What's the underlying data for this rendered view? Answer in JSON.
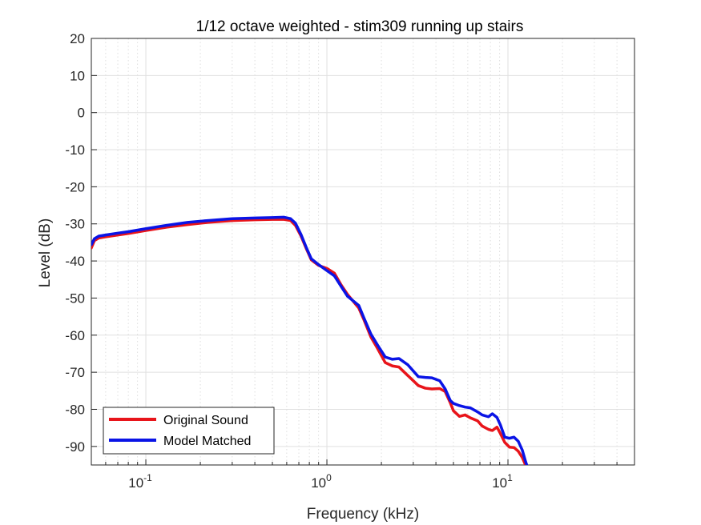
{
  "chart_data": {
    "type": "line",
    "title": "1/12 octave weighted - stim309 running up stairs",
    "xlabel": "Frequency (kHz)",
    "ylabel": "Level (dB)",
    "xscale": "log",
    "xlim": [
      0.05,
      50
    ],
    "ylim": [
      -95,
      20
    ],
    "grid": true,
    "minor_grid": true,
    "legend_location": "bottom-left",
    "yticks": [
      20,
      10,
      0,
      -10,
      -20,
      -30,
      -40,
      -50,
      -60,
      -70,
      -80,
      -90
    ],
    "ytick_labels": [
      "20",
      "10",
      "0",
      "-10",
      "-20",
      "-30",
      "-40",
      "-50",
      "-60",
      "-70",
      "-80",
      "-90"
    ],
    "xticks": [
      {
        "value": 0.1,
        "base": "10",
        "exp": "-1"
      },
      {
        "value": 1,
        "base": "10",
        "exp": "0"
      },
      {
        "value": 10,
        "base": "10",
        "exp": "1"
      }
    ],
    "series": [
      {
        "name": "Original Sound",
        "color": "#e8141a",
        "points": [
          [
            0.05,
            -36.5
          ],
          [
            0.052,
            -34.5
          ],
          [
            0.055,
            -33.8
          ],
          [
            0.06,
            -33.5
          ],
          [
            0.07,
            -33.0
          ],
          [
            0.08,
            -32.6
          ],
          [
            0.1,
            -31.8
          ],
          [
            0.13,
            -30.9
          ],
          [
            0.17,
            -30.2
          ],
          [
            0.22,
            -29.6
          ],
          [
            0.3,
            -29.1
          ],
          [
            0.4,
            -28.9
          ],
          [
            0.5,
            -28.8
          ],
          [
            0.58,
            -28.8
          ],
          [
            0.63,
            -29.1
          ],
          [
            0.67,
            -30.4
          ],
          [
            0.72,
            -33.3
          ],
          [
            0.77,
            -36.7
          ],
          [
            0.82,
            -39.7
          ],
          [
            0.9,
            -41.2
          ],
          [
            1.0,
            -42.0
          ],
          [
            1.1,
            -43.3
          ],
          [
            1.2,
            -46.5
          ],
          [
            1.3,
            -49.0
          ],
          [
            1.5,
            -52.7
          ],
          [
            1.6,
            -55.8
          ],
          [
            1.75,
            -60.5
          ],
          [
            1.9,
            -63.5
          ],
          [
            2.1,
            -67.4
          ],
          [
            2.3,
            -68.3
          ],
          [
            2.5,
            -68.6
          ],
          [
            2.8,
            -70.9
          ],
          [
            3.2,
            -73.6
          ],
          [
            3.5,
            -74.3
          ],
          [
            3.8,
            -74.5
          ],
          [
            4.2,
            -74.4
          ],
          [
            4.5,
            -75.2
          ],
          [
            4.8,
            -78.2
          ],
          [
            5.0,
            -80.4
          ],
          [
            5.4,
            -81.9
          ],
          [
            5.8,
            -81.5
          ],
          [
            6.2,
            -82.3
          ],
          [
            6.8,
            -83.1
          ],
          [
            7.2,
            -84.5
          ],
          [
            7.8,
            -85.4
          ],
          [
            8.2,
            -85.7
          ],
          [
            8.7,
            -84.8
          ],
          [
            9.1,
            -86.6
          ],
          [
            9.6,
            -88.9
          ],
          [
            10.2,
            -90.2
          ],
          [
            10.8,
            -90.3
          ],
          [
            11.4,
            -91.3
          ],
          [
            12.0,
            -93.0
          ],
          [
            12.5,
            -95.0
          ]
        ]
      },
      {
        "name": "Model Matched",
        "color": "#0a14e6",
        "points": [
          [
            0.05,
            -35.6
          ],
          [
            0.052,
            -34.0
          ],
          [
            0.055,
            -33.3
          ],
          [
            0.06,
            -33.0
          ],
          [
            0.07,
            -32.5
          ],
          [
            0.08,
            -32.1
          ],
          [
            0.1,
            -31.3
          ],
          [
            0.13,
            -30.4
          ],
          [
            0.17,
            -29.6
          ],
          [
            0.22,
            -29.1
          ],
          [
            0.3,
            -28.6
          ],
          [
            0.4,
            -28.4
          ],
          [
            0.5,
            -28.3
          ],
          [
            0.58,
            -28.2
          ],
          [
            0.63,
            -28.6
          ],
          [
            0.67,
            -29.8
          ],
          [
            0.72,
            -32.9
          ],
          [
            0.77,
            -36.4
          ],
          [
            0.82,
            -39.4
          ],
          [
            0.9,
            -41.0
          ],
          [
            1.0,
            -42.6
          ],
          [
            1.1,
            -44.0
          ],
          [
            1.2,
            -46.9
          ],
          [
            1.3,
            -49.5
          ],
          [
            1.5,
            -52.0
          ],
          [
            1.6,
            -55.3
          ],
          [
            1.75,
            -59.7
          ],
          [
            1.9,
            -62.6
          ],
          [
            2.1,
            -65.9
          ],
          [
            2.3,
            -66.5
          ],
          [
            2.5,
            -66.3
          ],
          [
            2.8,
            -68.0
          ],
          [
            3.2,
            -71.2
          ],
          [
            3.5,
            -71.4
          ],
          [
            3.8,
            -71.5
          ],
          [
            4.2,
            -72.3
          ],
          [
            4.5,
            -74.5
          ],
          [
            4.8,
            -77.6
          ],
          [
            5.0,
            -78.4
          ],
          [
            5.4,
            -79.0
          ],
          [
            5.8,
            -79.4
          ],
          [
            6.2,
            -79.6
          ],
          [
            6.8,
            -80.7
          ],
          [
            7.2,
            -81.5
          ],
          [
            7.8,
            -82.0
          ],
          [
            8.2,
            -81.2
          ],
          [
            8.7,
            -82.2
          ],
          [
            9.1,
            -84.3
          ],
          [
            9.6,
            -87.5
          ],
          [
            10.2,
            -87.8
          ],
          [
            10.8,
            -87.5
          ],
          [
            11.4,
            -88.6
          ],
          [
            12.0,
            -91.0
          ],
          [
            12.5,
            -94.0
          ],
          [
            12.7,
            -95.0
          ]
        ]
      }
    ]
  }
}
